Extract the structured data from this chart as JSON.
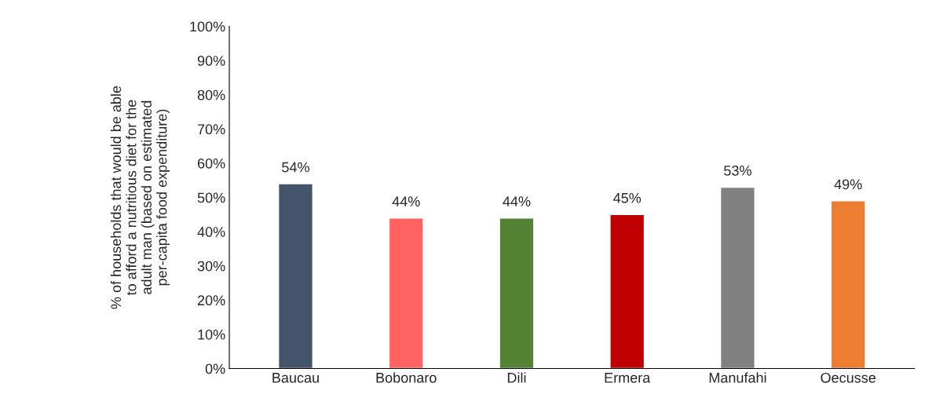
{
  "chart_data": {
    "type": "bar",
    "ylabel": "% of households that would be able\nto afford a nutritious diet for the\nadult man (based on estimated\nper-capita food expenditure)",
    "categories": [
      "Baucau",
      "Bobonaro",
      "Dili",
      "Ermera",
      "Manufahi",
      "Oecusse"
    ],
    "values": [
      54,
      44,
      44,
      45,
      53,
      49
    ],
    "value_labels": [
      "54%",
      "44%",
      "44%",
      "45%",
      "53%",
      "49%"
    ],
    "colors": [
      "#44546a",
      "#ff6361",
      "#548235",
      "#c00000",
      "#808080",
      "#ed7d31"
    ],
    "ylim": [
      0,
      100
    ],
    "yticks": [
      {
        "value": 0,
        "label": "0%"
      },
      {
        "value": 10,
        "label": "10%"
      },
      {
        "value": 20,
        "label": "20%"
      },
      {
        "value": 30,
        "label": "30%"
      },
      {
        "value": 40,
        "label": "40%"
      },
      {
        "value": 50,
        "label": "50%"
      },
      {
        "value": 60,
        "label": "60%"
      },
      {
        "value": 70,
        "label": "70%"
      },
      {
        "value": 80,
        "label": "80%"
      },
      {
        "value": 90,
        "label": "90%"
      },
      {
        "value": 100,
        "label": "100%"
      }
    ],
    "grid": false,
    "legend": false
  }
}
